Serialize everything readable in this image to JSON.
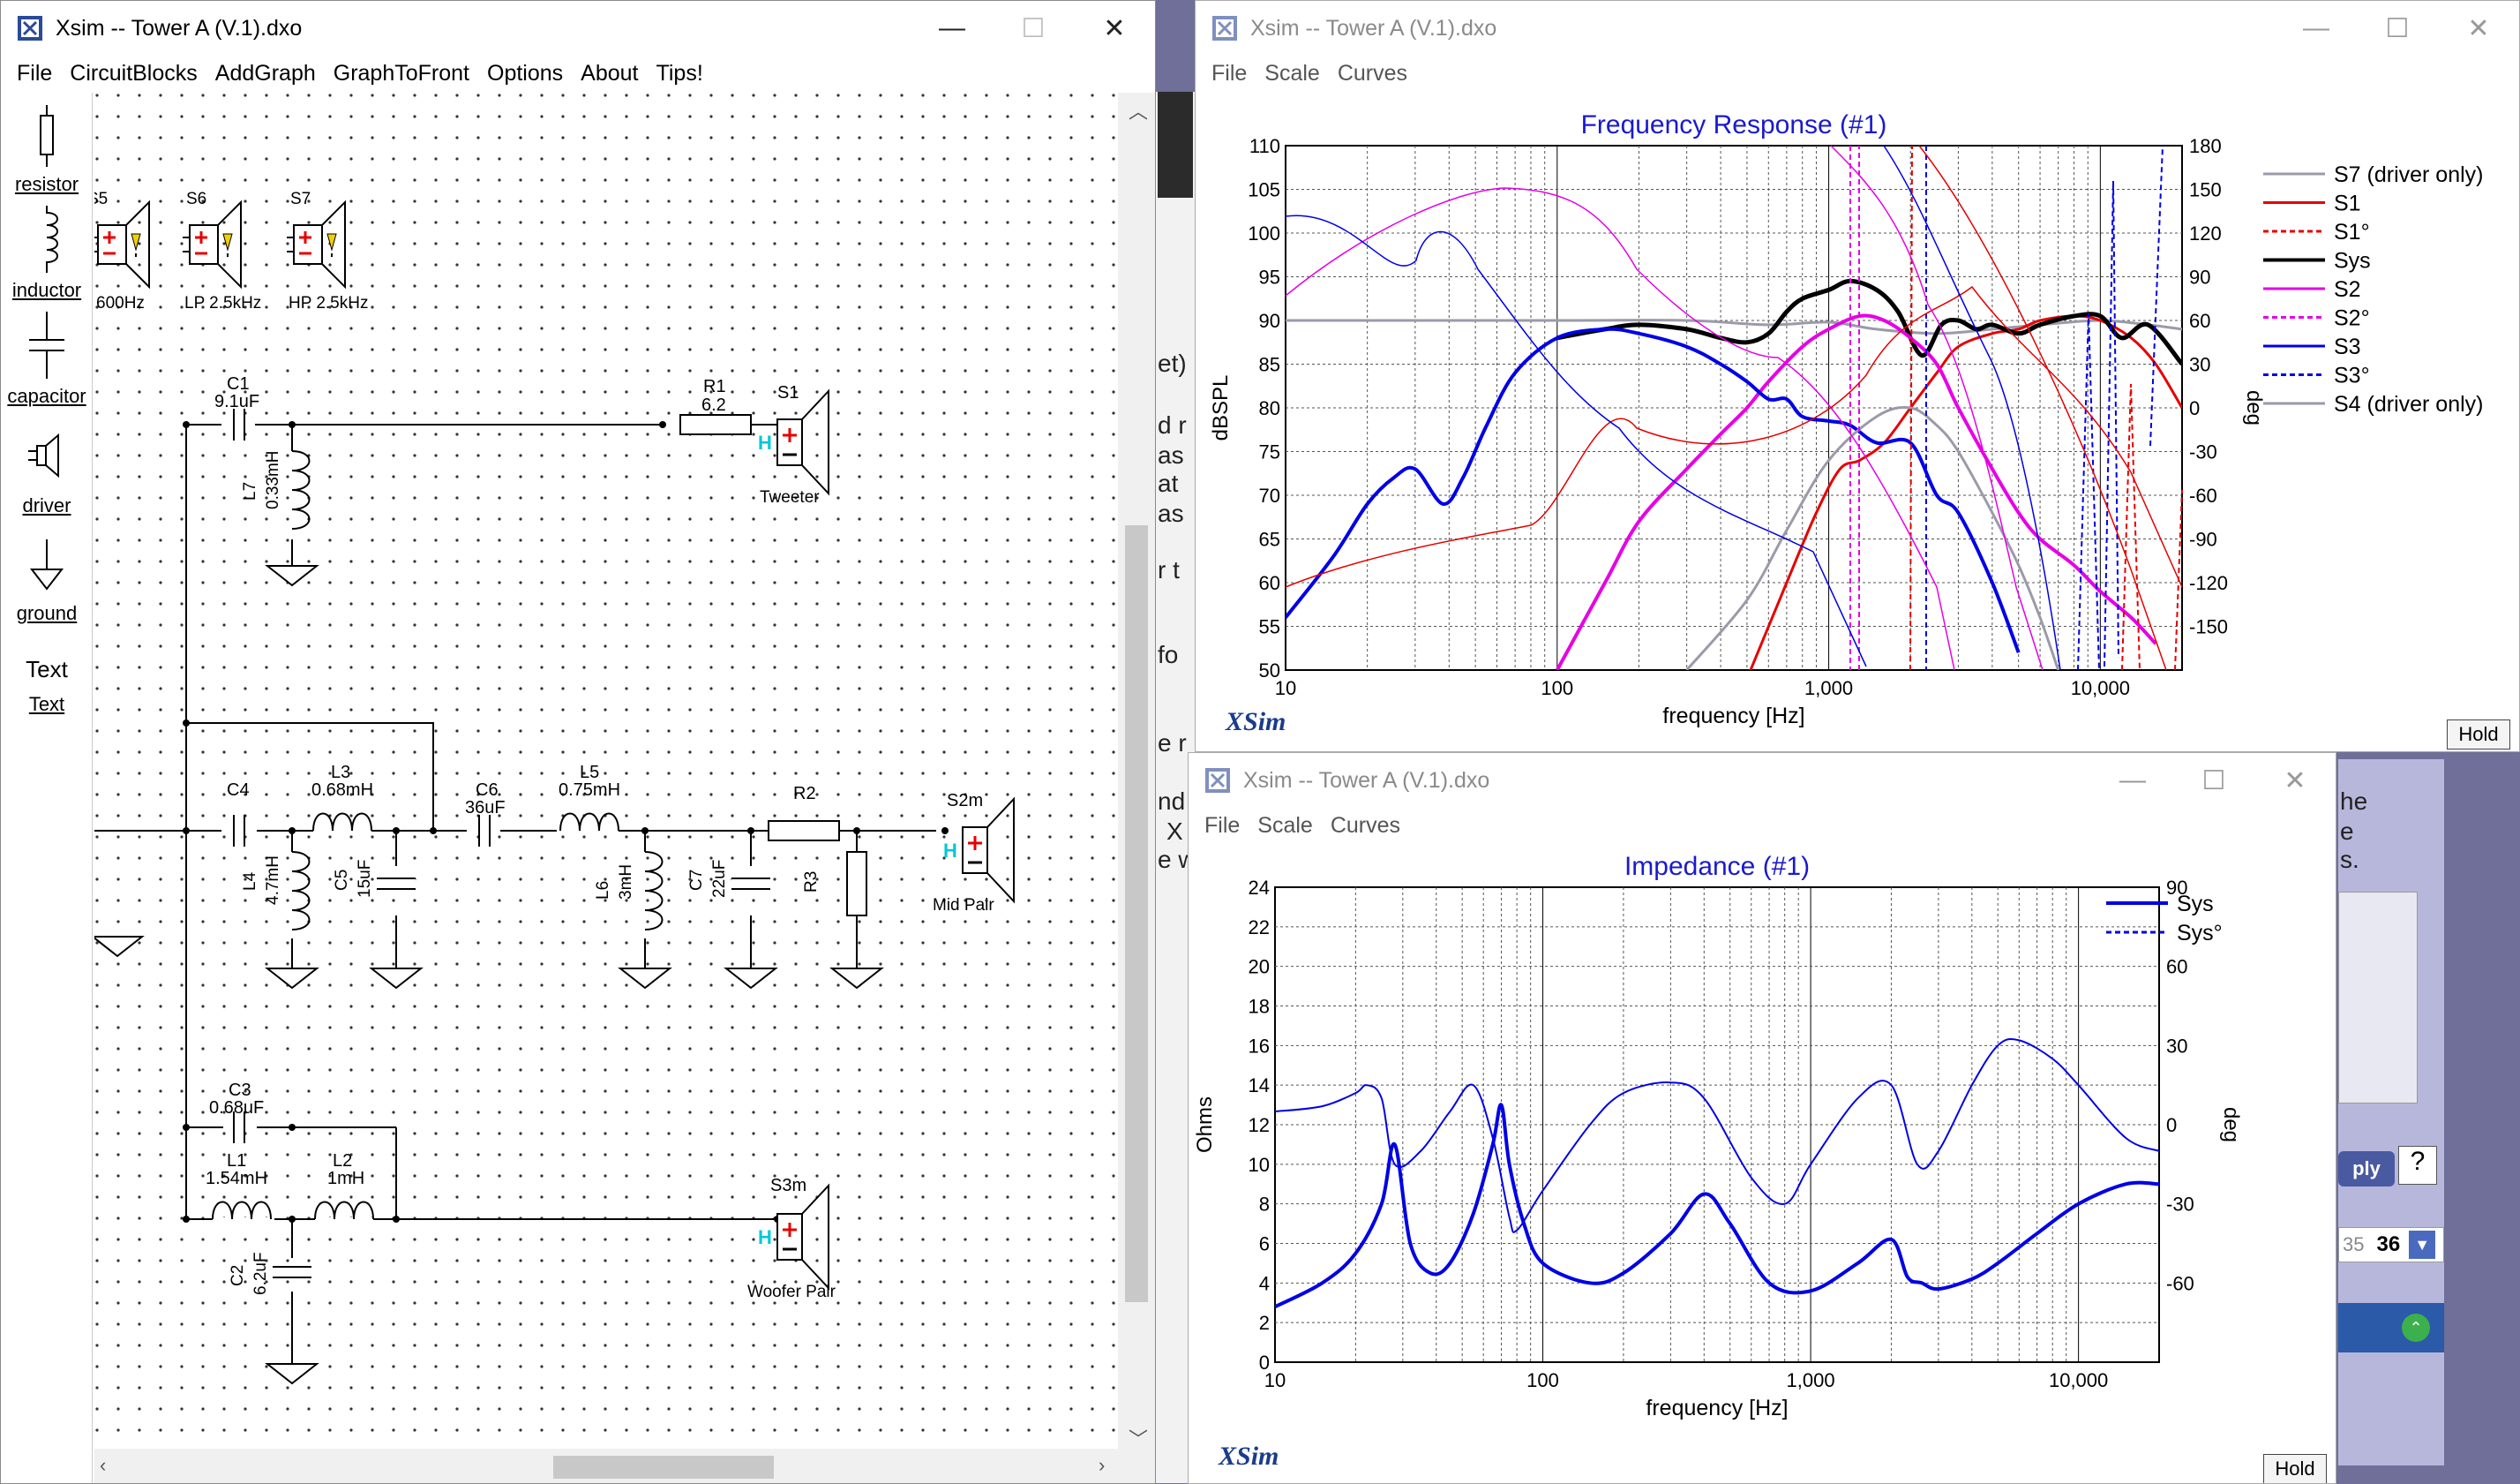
{
  "colors": {
    "blue": "#0000e6",
    "red": "#e60000",
    "magenta": "#e600e6",
    "black": "#000000",
    "grey": "#9a9aaa",
    "title": "#1a1acd"
  },
  "main_window": {
    "title": "Xsim -- Tower A (V.1).dxo",
    "menu": [
      "File",
      "CircuitBlocks",
      "AddGraph",
      "GraphToFront",
      "Options",
      "About",
      "Tips!"
    ],
    "palette": [
      {
        "label": "resistor",
        "icon": "resistor-icon"
      },
      {
        "label": "inductor",
        "icon": "inductor-icon"
      },
      {
        "label": "capacitor",
        "icon": "capacitor-icon"
      },
      {
        "label": "driver",
        "icon": "driver-icon"
      },
      {
        "label": "ground",
        "icon": "ground-icon"
      },
      {
        "label": "Text",
        "icon": "text-icon"
      }
    ],
    "controls": {
      "minimize": "—",
      "maximize": "☐",
      "close": "✕"
    }
  },
  "schematic": {
    "drivers_top": [
      {
        "id": "S5",
        "note": "600Hz"
      },
      {
        "id": "S6",
        "note": "LP 2.5kHz"
      },
      {
        "id": "S7",
        "note": "HP 2.5kHz"
      }
    ],
    "components": {
      "C1": {
        "name": "C1",
        "value": "9.1uF"
      },
      "L7": {
        "name": "L7",
        "value": "0.33mH"
      },
      "R1": {
        "name": "R1",
        "value": "6.2"
      },
      "S1": {
        "name": "S1",
        "note": "Tweeter"
      },
      "C4": {
        "name": "C4"
      },
      "L3": {
        "name": "L3",
        "value": "0.68mH"
      },
      "L4": {
        "name": "L4",
        "value": "4.7mH"
      },
      "C5": {
        "name": "C5",
        "value": "15uF"
      },
      "C6": {
        "name": "C6",
        "value": "36uF"
      },
      "L5": {
        "name": "L5",
        "value": "0.75mH"
      },
      "L6": {
        "name": "L6",
        "value": "3mH"
      },
      "C7": {
        "name": "C7",
        "value": "22uF"
      },
      "R2": {
        "name": "R2"
      },
      "R3": {
        "name": "R3"
      },
      "S2m": {
        "name": "S2m",
        "note": "Mid Pair"
      },
      "C3": {
        "name": "C3",
        "value": "0.68uF"
      },
      "L1": {
        "name": "L1",
        "value": "1.54mH"
      },
      "L2": {
        "name": "L2",
        "value": "1mH"
      },
      "C2": {
        "name": "C2",
        "value": "6.2uF"
      },
      "S3m": {
        "name": "S3m",
        "note": "Woofer Pair"
      }
    }
  },
  "freq_window": {
    "title": "Xsim -- Tower A (V.1).dxo",
    "menu": [
      "File",
      "Scale",
      "Curves"
    ],
    "brand": "XSim",
    "hold": "Hold",
    "controls": {
      "minimize": "—",
      "maximize": "☐",
      "close": "✕"
    }
  },
  "imp_window": {
    "title": "Xsim -- Tower A (V.1).dxo",
    "menu": [
      "File",
      "Scale",
      "Curves"
    ],
    "brand": "XSim",
    "hold": "Hold",
    "controls": {
      "minimize": "—",
      "maximize": "☐",
      "close": "✕"
    }
  },
  "background_fragments": [
    "et)",
    "d r",
    "as",
    "at",
    "as",
    "r t",
    "fo",
    "e r",
    "nd",
    "X",
    "e w",
    "he",
    "e",
    "s.",
    "ply",
    "35",
    "36"
  ],
  "chart_data": [
    {
      "type": "line",
      "title": "Frequency Response (#1)",
      "xlabel": "frequency [Hz]",
      "ylabel": "dBSPL",
      "y2label": "deg",
      "xscale": "log",
      "xlim": [
        10,
        20000
      ],
      "ylim": [
        50,
        110
      ],
      "y2lim": [
        -180,
        180
      ],
      "xticks": [
        10,
        100,
        1000,
        10000
      ],
      "xticklabels": [
        "10",
        "100",
        "1,000",
        "10,000"
      ],
      "yticks": [
        50,
        55,
        60,
        65,
        70,
        75,
        80,
        85,
        90,
        95,
        100,
        105,
        110
      ],
      "y2ticks": [
        -150,
        -120,
        -90,
        -60,
        -30,
        0,
        30,
        60,
        90,
        120,
        150,
        180
      ],
      "grid": true,
      "legend_position": "right",
      "series": [
        {
          "name": "S7 (driver only)",
          "color": "#9a9aaa",
          "style": "solid",
          "width": 3,
          "x": [
            10,
            100,
            300,
            600,
            1000,
            1500,
            2500,
            4000,
            6000,
            10000,
            15000,
            20000
          ],
          "y": [
            90,
            90,
            90,
            89.5,
            89.8,
            89,
            88.5,
            89,
            89.5,
            90,
            89.5,
            89
          ]
        },
        {
          "name": "S1",
          "color": "#e60000",
          "style": "solid",
          "width": 3,
          "x": [
            500,
            700,
            900,
            1100,
            1300,
            1600,
            2000,
            2500,
            3000,
            4000,
            5000,
            6000,
            8000,
            10000,
            13000,
            16000,
            20000
          ],
          "y": [
            49,
            60,
            68,
            73,
            74,
            76,
            80,
            84,
            87,
            88.5,
            89,
            90,
            90.5,
            90,
            88,
            85,
            80
          ]
        },
        {
          "name": "S1°",
          "color": "#e60000",
          "style": "dash",
          "width": 2,
          "x": [],
          "y": []
        },
        {
          "name": "Sys",
          "color": "#000000",
          "style": "solid",
          "width": 5,
          "x": [
            100,
            150,
            200,
            300,
            400,
            500,
            600,
            700,
            800,
            1000,
            1200,
            1500,
            1800,
            2200,
            2600,
            3000,
            3500,
            4000,
            5000,
            6000,
            8000,
            10000,
            12000,
            15000,
            20000
          ],
          "y": [
            88,
            89,
            89.5,
            89,
            88,
            87.5,
            88.5,
            91,
            92.5,
            93.5,
            94.5,
            93.5,
            91,
            86,
            89.5,
            90,
            89,
            89.5,
            88.5,
            89.5,
            90.5,
            90.5,
            88,
            89.5,
            85
          ]
        },
        {
          "name": "S2",
          "color": "#e600e6",
          "style": "solid",
          "width": 4,
          "x": [
            100,
            150,
            200,
            300,
            400,
            500,
            600,
            800,
            1000,
            1300,
            1600,
            2000,
            2500,
            3000,
            4000,
            5000,
            6000,
            8000,
            10000,
            13000,
            16000
          ],
          "y": [
            50,
            60,
            67,
            73,
            77,
            80,
            83,
            87,
            89,
            90.5,
            90,
            88,
            85,
            80,
            73,
            68,
            65,
            62,
            59,
            56,
            53
          ]
        },
        {
          "name": "S2°",
          "color": "#e600e6",
          "style": "dash",
          "width": 2,
          "x": [],
          "y": []
        },
        {
          "name": "S3",
          "color": "#0000e6",
          "style": "solid",
          "width": 4,
          "x": [
            10,
            15,
            20,
            25,
            30,
            38,
            45,
            55,
            70,
            100,
            150,
            200,
            300,
            400,
            500,
            600,
            700,
            800,
            1000,
            1200,
            1500,
            2000,
            2500,
            3000,
            4000,
            5000
          ],
          "y": [
            56,
            63,
            69,
            72,
            73,
            69,
            72,
            78,
            84,
            88,
            89,
            88.5,
            87,
            85,
            83,
            81,
            81,
            79,
            78.5,
            78,
            76,
            76,
            70,
            68,
            60,
            52
          ]
        },
        {
          "name": "S3°",
          "color": "#0000e6",
          "style": "dash",
          "width": 2,
          "x": [],
          "y": []
        },
        {
          "name": "S4 (driver only)",
          "color": "#9a9aaa",
          "style": "solid",
          "width": 3,
          "x": [
            300,
            500,
            700,
            1000,
            1500,
            2000,
            2500,
            3000,
            4000,
            5000,
            6000,
            7000
          ],
          "y": [
            50,
            58,
            66,
            74,
            79,
            80,
            78,
            75,
            68,
            62,
            56,
            50
          ]
        }
      ]
    },
    {
      "type": "line",
      "title": "Impedance (#1)",
      "xlabel": "frequency [Hz]",
      "ylabel": "Ohms",
      "y2label": "deg",
      "xscale": "log",
      "xlim": [
        10,
        20000
      ],
      "ylim": [
        0,
        24
      ],
      "y2lim": [
        -90,
        90
      ],
      "xticks": [
        10,
        100,
        1000,
        10000
      ],
      "xticklabels": [
        "10",
        "100",
        "1,000",
        "10,000"
      ],
      "yticks": [
        0,
        2,
        4,
        6,
        8,
        10,
        12,
        14,
        16,
        18,
        20,
        22,
        24
      ],
      "y2ticks": [
        -60,
        -30,
        0,
        30,
        60,
        90
      ],
      "grid": true,
      "legend_position": "top-right",
      "series": [
        {
          "name": "Sys",
          "color": "#0000e6",
          "style": "solid",
          "width": 4,
          "x": [
            10,
            15,
            20,
            25,
            28,
            32,
            38,
            45,
            55,
            65,
            70,
            75,
            85,
            100,
            150,
            200,
            300,
            400,
            500,
            700,
            1000,
            1500,
            2000,
            2300,
            2600,
            3000,
            4000,
            5000,
            7000,
            10000,
            15000,
            20000
          ],
          "y": [
            2.8,
            4,
            5.5,
            8,
            11,
            6,
            4.5,
            5,
            7.5,
            11,
            13,
            10,
            7,
            5,
            4,
            4.5,
            6.5,
            8.5,
            7,
            4,
            3.6,
            5,
            6.2,
            4.3,
            4,
            3.7,
            4.2,
            5,
            6.5,
            8,
            9,
            9
          ]
        },
        {
          "name": "Sys°",
          "color": "#0000e6",
          "style": "thin",
          "width": 2,
          "x": [
            10,
            15,
            20,
            22,
            25,
            28,
            35,
            45,
            55,
            65,
            75,
            80,
            100,
            150,
            200,
            300,
            400,
            600,
            800,
            1000,
            1500,
            2000,
            2500,
            3000,
            4000,
            5000,
            6000,
            8000,
            10000,
            15000,
            20000
          ],
          "y": [
            5,
            7,
            12,
            15,
            10,
            -15,
            -10,
            5,
            15,
            -5,
            -35,
            -40,
            -25,
            0,
            12,
            16,
            10,
            -20,
            -30,
            -15,
            10,
            15,
            -15,
            -10,
            15,
            30,
            32,
            25,
            15,
            -5,
            -10
          ]
        }
      ]
    }
  ]
}
